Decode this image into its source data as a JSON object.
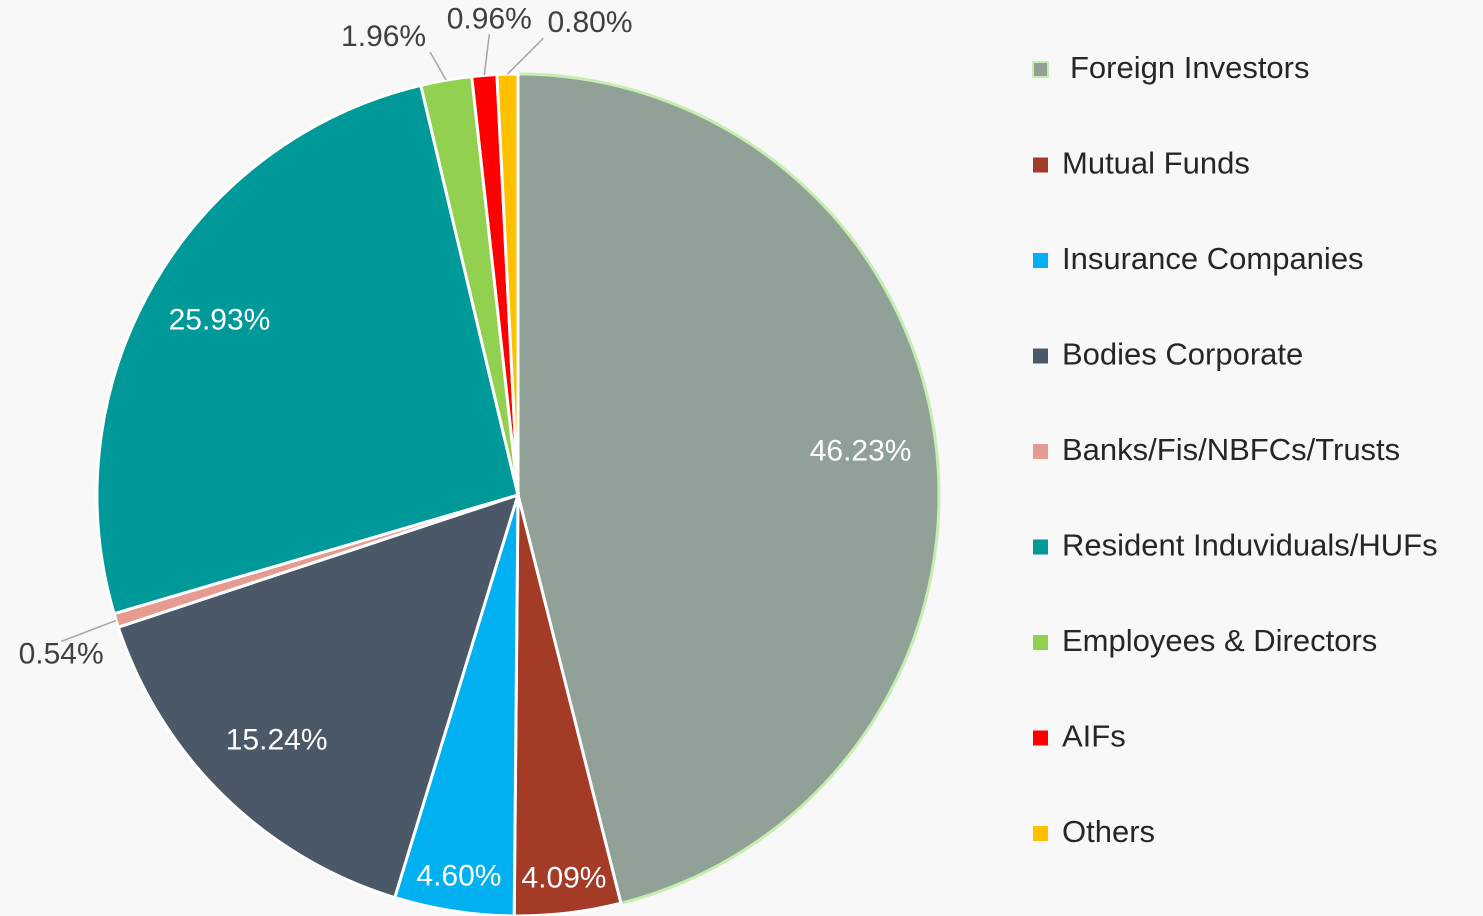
{
  "chart_data": {
    "type": "pie",
    "categories": [
      "Foreign Investors",
      "Mutual Funds",
      "Insurance Companies",
      "Bodies Corporate",
      "Banks/Fis/NBFCs/Trusts",
      "Resident Induviduals/HUFs",
      "Employees & Directors",
      "AIFs",
      "Others"
    ],
    "values": [
      46.23,
      4.09,
      4.6,
      15.24,
      0.54,
      25.93,
      1.96,
      0.96,
      0.8
    ],
    "value_labels": [
      "46.23%",
      "4.09%",
      "4.60%",
      "15.24%",
      "0.54%",
      "25.93%",
      "1.96%",
      "0.96%",
      "0.80%"
    ],
    "colors": [
      "#92a197",
      "#a33b26",
      "#00b0f0",
      "#4b5867",
      "#e59b8f",
      "#009999",
      "#92d050",
      "#ff0000",
      "#ffc000"
    ],
    "legend": "right"
  }
}
